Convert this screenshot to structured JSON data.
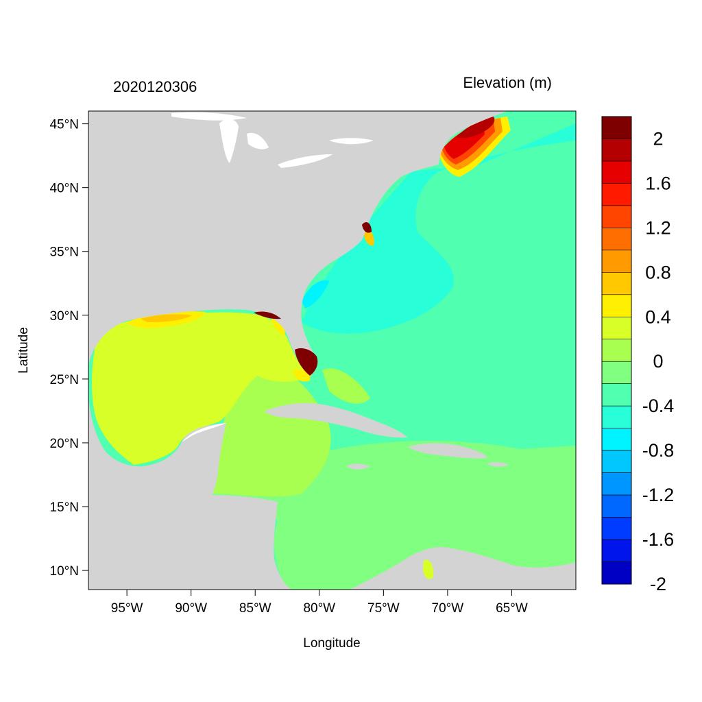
{
  "title_left": "2020120306",
  "title_right": "Elevation (m)",
  "axes": {
    "xlabel": "Longitude",
    "ylabel": "Latitude",
    "lon_range": [
      -98,
      -60
    ],
    "lat_range": [
      8.5,
      46
    ],
    "x_ticks": [
      {
        "value": -95,
        "label": "95°W"
      },
      {
        "value": -90,
        "label": "90°W"
      },
      {
        "value": -85,
        "label": "85°W"
      },
      {
        "value": -80,
        "label": "80°W"
      },
      {
        "value": -75,
        "label": "75°W"
      },
      {
        "value": -70,
        "label": "70°W"
      },
      {
        "value": -65,
        "label": "65°W"
      }
    ],
    "y_ticks": [
      {
        "value": 45,
        "label": "45°N"
      },
      {
        "value": 40,
        "label": "40°N"
      },
      {
        "value": 35,
        "label": "35°N"
      },
      {
        "value": 30,
        "label": "30°N"
      },
      {
        "value": 25,
        "label": "25°N"
      },
      {
        "value": 20,
        "label": "20°N"
      },
      {
        "value": 15,
        "label": "15°N"
      },
      {
        "value": 10,
        "label": "10°N"
      }
    ]
  },
  "colorbar": {
    "levels": [
      {
        "color": "#7f0000"
      },
      {
        "color": "#b40000"
      },
      {
        "color": "#e60000"
      },
      {
        "color": "#ff1a00"
      },
      {
        "color": "#ff4500"
      },
      {
        "color": "#ff6e00"
      },
      {
        "color": "#ff9a00"
      },
      {
        "color": "#ffc800"
      },
      {
        "color": "#ffef00"
      },
      {
        "color": "#d8ff28"
      },
      {
        "color": "#a8ff50"
      },
      {
        "color": "#80ff80"
      },
      {
        "color": "#50ffb0"
      },
      {
        "color": "#28ffd8"
      },
      {
        "color": "#00f4ff"
      },
      {
        "color": "#00c8ff"
      },
      {
        "color": "#0096ff"
      },
      {
        "color": "#0068ff"
      },
      {
        "color": "#003cff"
      },
      {
        "color": "#0014ec"
      },
      {
        "color": "#0000c4"
      }
    ],
    "labels": [
      "2",
      "1.6",
      "1.2",
      "0.8",
      "0.4",
      "0",
      "-0.4",
      "-0.8",
      "-1.2",
      "-1.6",
      "-2"
    ]
  },
  "land_color": "#d3d3d3"
}
